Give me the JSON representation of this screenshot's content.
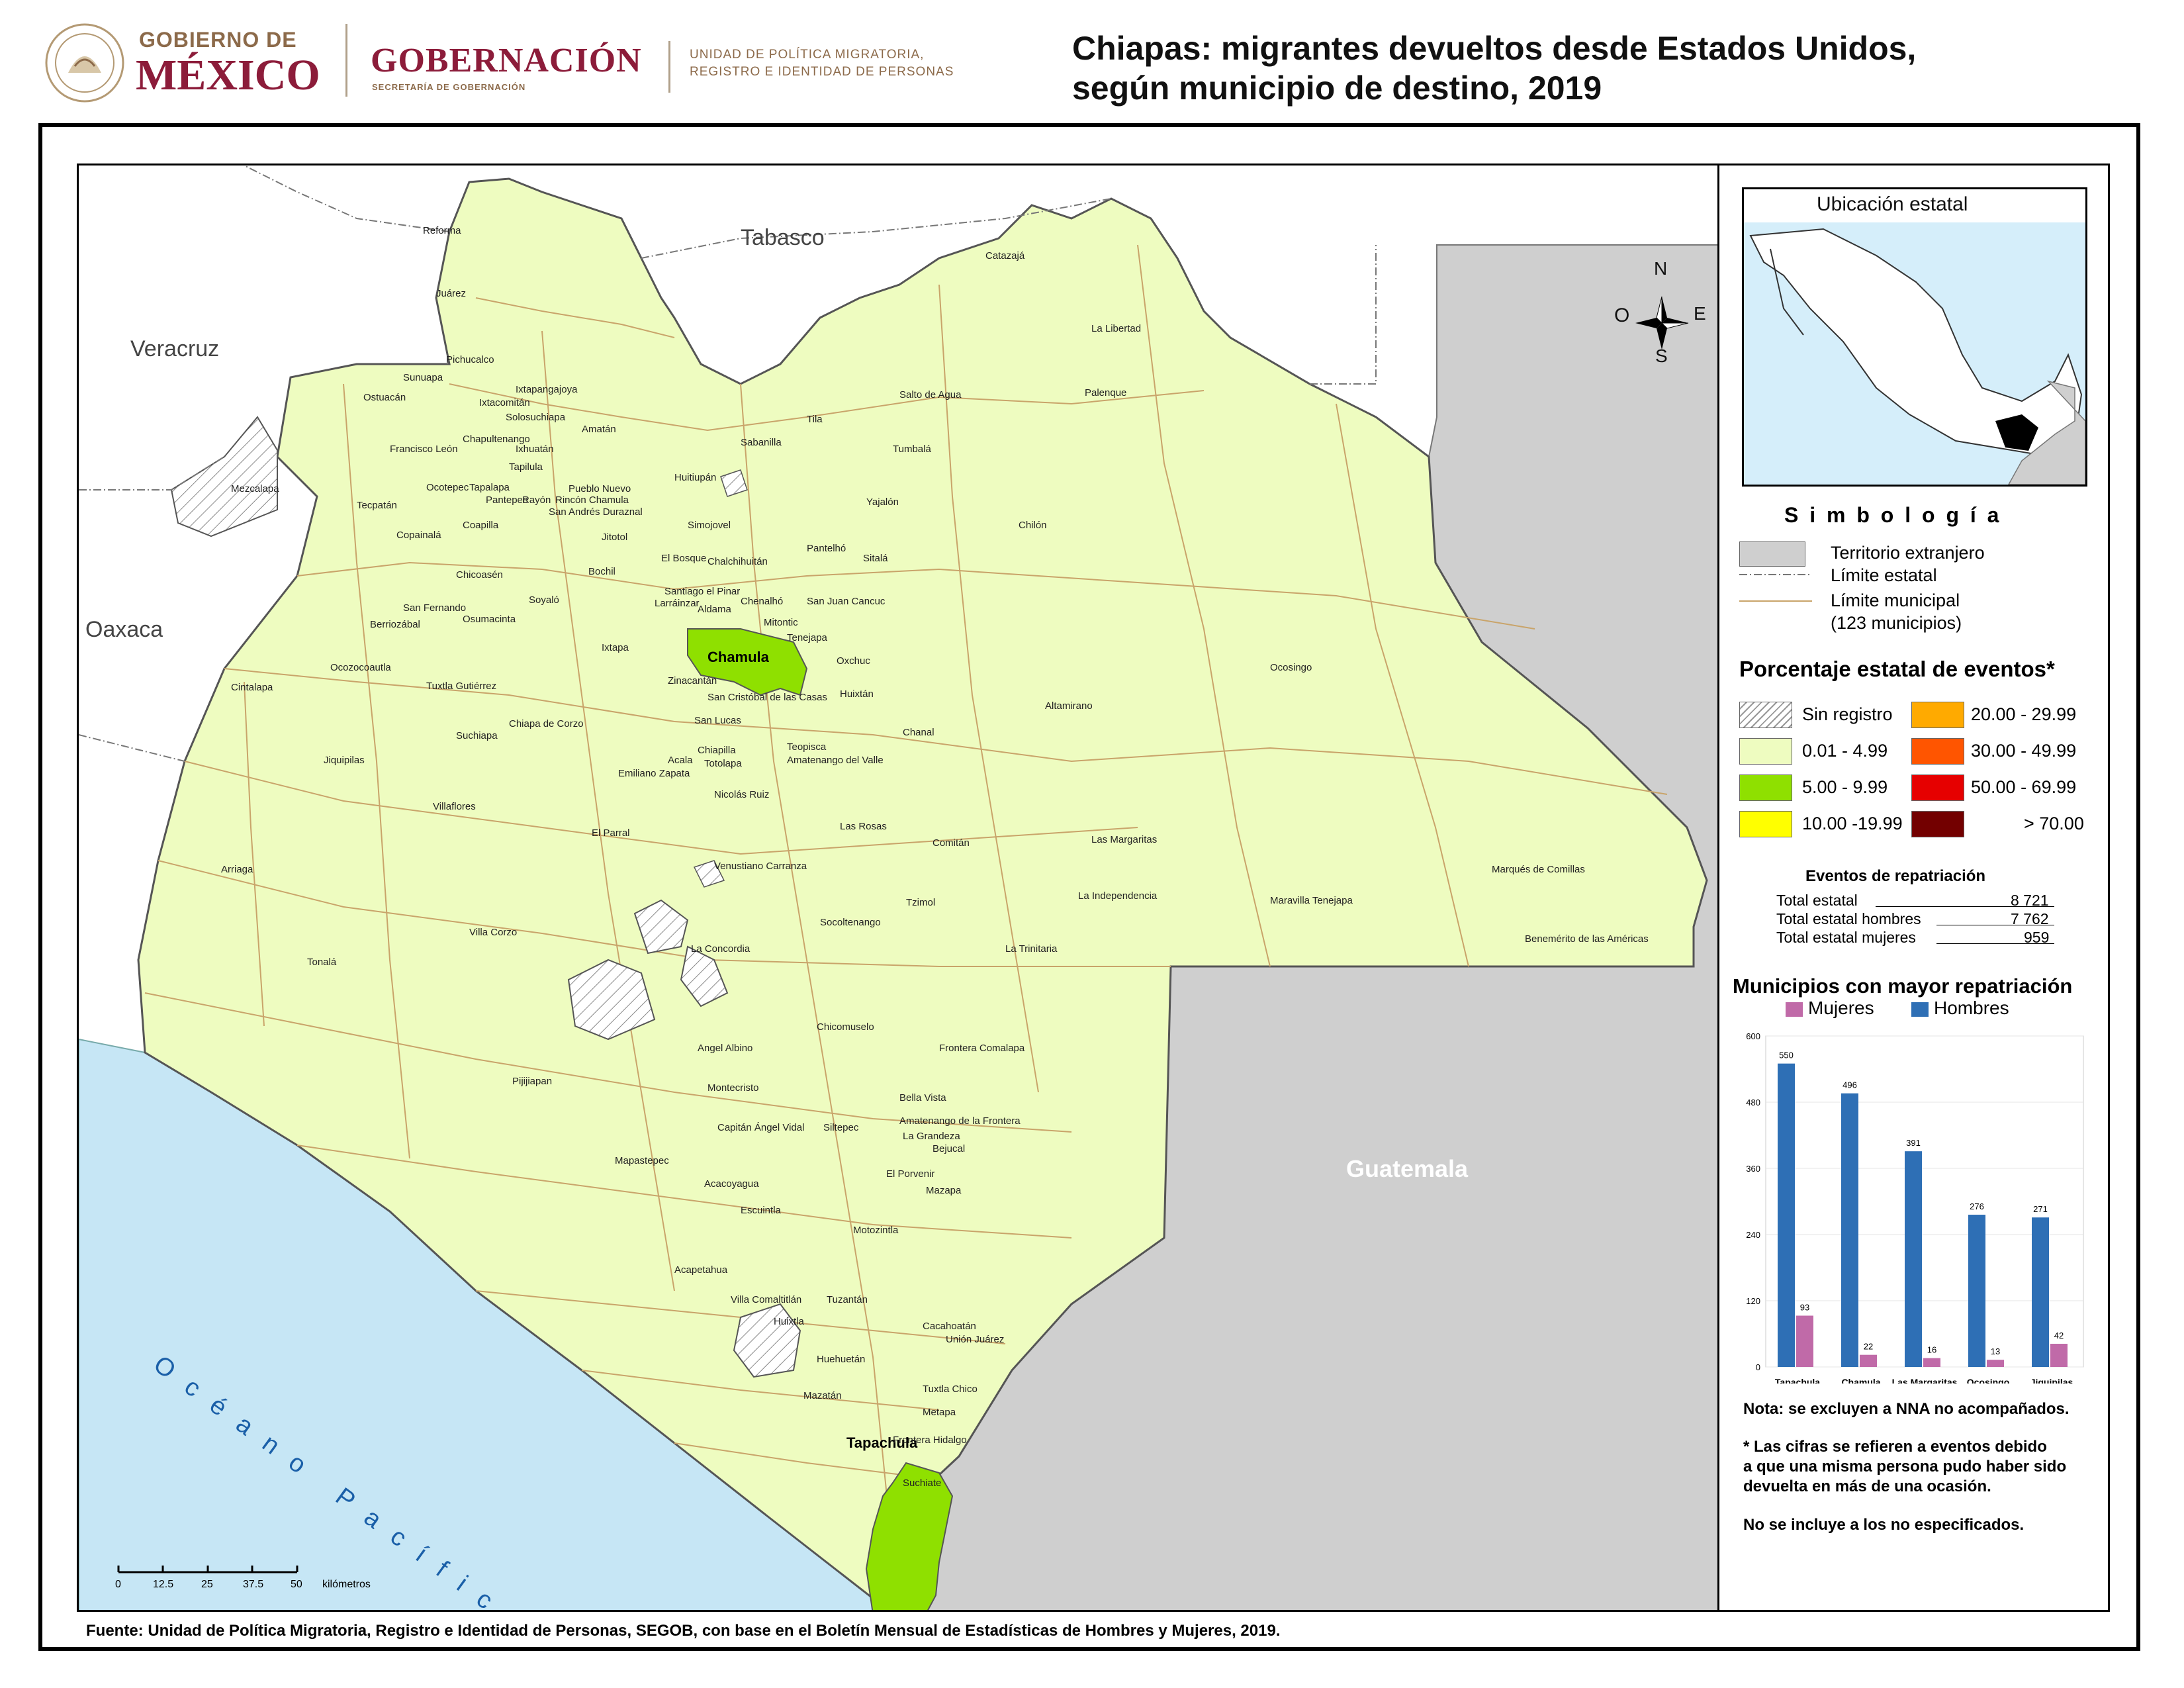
{
  "header": {
    "gob_small": "GOBIERNO DE",
    "gob_big": "MÉXICO",
    "gobernacion": "GOBERNACIÓN",
    "segob": "SECRETARÍA DE GOBERNACIÓN",
    "unit_line1": "UNIDAD DE POLÍTICA MIGRATORIA,",
    "unit_line2": "REGISTRO E IDENTIDAD DE PERSONAS",
    "seal_text": "ESTADOS UNIDOS MEXICANOS"
  },
  "title": {
    "line1": "Chiapas: migrantes devueltos desde Estados Unidos,",
    "line2": "según municipio de destino, 2019"
  },
  "map": {
    "regions": {
      "tabasco": "Tabasco",
      "veracruz": "Veracruz",
      "oaxaca": "Oaxaca",
      "guatemala": "Guatemala",
      "ocean": "Océano Pacífico"
    },
    "compass": {
      "n": "N",
      "s": "S",
      "e": "E",
      "o": "O"
    },
    "highlighted": {
      "chamula": "Chamula",
      "tapachula": "Tapachula"
    },
    "municipalities": [
      "Reforma",
      "Juárez",
      "Catazajá",
      "La Libertad",
      "Pichucalco",
      "Sunuapa",
      "Ostuacán",
      "Ixtapangajoya",
      "Ixtacomitán",
      "Solosuchiapa",
      "Amatán",
      "Salto de Agua",
      "Palenque",
      "Tila",
      "Chapultenango",
      "Francisco León",
      "Ixhuatán",
      "Sabanilla",
      "Tumbalá",
      "Mezcalapa",
      "Ocotepec",
      "Tapalapa",
      "Tapilula",
      "Pantepec",
      "Rayón",
      "Pueblo Nuevo",
      "Rincón Chamula",
      "Huitiupán",
      "Tecpatán",
      "San Andrés Duraznal",
      "Yajalón",
      "Coapilla",
      "Simojovel",
      "Chilón",
      "Copainalá",
      "Jitotol",
      "Pantelhó",
      "El Bosque",
      "Sitalá",
      "Chalchihuitán",
      "Chicoasén",
      "Bochil",
      "Santiago el Pinar",
      "Larráinzar",
      "San Fernando",
      "Soyaló",
      "Aldama",
      "Chenalhó",
      "San Juan Cancuc",
      "Berriozábal",
      "Osumacinta",
      "Mitontic",
      "Tenejapa",
      "Ixtapa",
      "Ocozocoautla",
      "Oxchuc",
      "Ocosingo",
      "Zinacantán",
      "Tuxtla Gutiérrez",
      "Cintalapa",
      "San Cristóbal de las Casas",
      "Huixtán",
      "Altamirano",
      "San Lucas",
      "Chiapa de Corzo",
      "Chanal",
      "Suchiapa",
      "Jiquipilas",
      "Chiapilla",
      "Teopisca",
      "Acala",
      "Totolapa",
      "Amatenango del Valle",
      "Emiliano Zapata",
      "Nicolás Ruiz",
      "Villaflores",
      "El Parral",
      "Las Rosas",
      "Las Margaritas",
      "Comitán",
      "Venustiano Carranza",
      "Arriaga",
      "Marqués de Comillas",
      "Tzimol",
      "La Independencia",
      "Maravilla Tenejapa",
      "Villa Corzo",
      "Socoltenango",
      "Benemérito de las Américas",
      "Tonalá",
      "La Concordia",
      "La Trinitaria",
      "Chicomuselo",
      "Angel Albino",
      "Frontera Comalapa",
      "Pijijiapan",
      "Montecristo",
      "Bella Vista",
      "Capitán Ángel Vidal",
      "Siltepec",
      "Amatenango de la Frontera",
      "La Grandeza",
      "Bejucal",
      "Mapastepec",
      "El Porvenir",
      "Acacoyagua",
      "Mazapa",
      "Escuintla",
      "Motozintla",
      "Acapetahua",
      "Villa Comaltitlán",
      "Tuzantán",
      "Huixtla",
      "Cacahoatán",
      "Unión Juárez",
      "Huehuetán",
      "Mazatán",
      "Tuxtla Chico",
      "Metapa",
      "Frontera Hidalgo",
      "Suchiate"
    ],
    "scale": {
      "ticks": [
        "0",
        "12.5",
        "25",
        "37.5",
        "50"
      ],
      "unit": "kilómetros"
    }
  },
  "inset": {
    "title": "Ubicación estatal"
  },
  "legend": {
    "symbology_title": "S i m b o l o g í a",
    "territorio": "Territorio extranjero",
    "limite_estatal": "Límite estatal",
    "limite_municipal": "Límite municipal",
    "municipios_count": "(123 municipios)",
    "pct_title": "Porcentaje estatal de eventos*",
    "classes": [
      {
        "label": "Sin registro",
        "color": "hatch"
      },
      {
        "label": "0.01  - 4.99",
        "color": "#eefcc0"
      },
      {
        "label": "5.00  - 9.99",
        "color": "#8fe000"
      },
      {
        "label": "10.00 -19.99",
        "color": "#ffff00"
      },
      {
        "label": "20.00 - 29.99",
        "color": "#ffaa00"
      },
      {
        "label": "30.00 - 49.99",
        "color": "#ff5500"
      },
      {
        "label": "50.00 - 69.99",
        "color": "#e60000"
      },
      {
        "label": "> 70.00",
        "color": "#730000"
      }
    ],
    "eventos_title": "Eventos de repatriación",
    "totals": [
      {
        "label": "Total estatal",
        "value": "8 721"
      },
      {
        "label": "Total estatal hombres",
        "value": "7 762"
      },
      {
        "label": "Total estatal mujeres",
        "value": "959"
      }
    ],
    "chart_title": "Municipios con mayor repatriación",
    "notes": {
      "n1": "Nota: se excluyen a NNA no acompañados.",
      "n2a": "* Las cifras se refieren a eventos debido",
      "n2b": "a que una misma persona pudo haber sido",
      "n2c": "devuelta en más de una ocasión.",
      "n3": "No se incluye a los no especificados."
    }
  },
  "chart_data": {
    "type": "bar",
    "categories": [
      "Tapachula",
      "Chamula",
      "Las Margaritas",
      "Ocosingo",
      "Jiquipilas"
    ],
    "series": [
      {
        "name": "Mujeres",
        "values": [
          93,
          22,
          16,
          13,
          42
        ],
        "color": "#c06aa8"
      },
      {
        "name": "Hombres",
        "values": [
          550,
          496,
          391,
          276,
          271
        ],
        "color": "#2e6fb5"
      }
    ],
    "ylim": [
      0,
      600
    ],
    "yticks": [
      "0",
      "120",
      "240",
      "360",
      "480",
      "600"
    ],
    "legend_position": "top"
  },
  "source": "Fuente: Unidad de Política Migratoria, Registro e Identidad de Personas, SEGOB, con base en el Boletín Mensual de Estadísticas de Hombres y Mujeres, 2019."
}
